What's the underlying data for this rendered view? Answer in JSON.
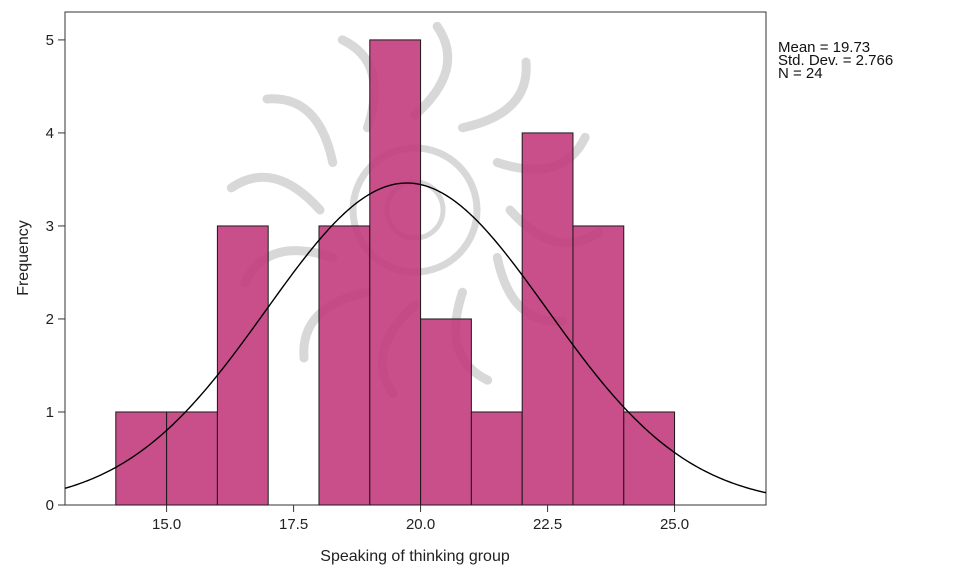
{
  "colors": {
    "bar_fill": "#c0377a",
    "bar_stroke": "#1a1a1a",
    "curve": "#000000",
    "watermark": "#b9b9b9"
  },
  "stats": {
    "mean": "Mean = 19.73",
    "std_dev": "Std. Dev. = 2.766",
    "n": "N = 24"
  },
  "chart_data": {
    "type": "bar",
    "xlabel": "Speaking of thinking group",
    "ylabel": "Frequency",
    "xlim": [
      13.0,
      26.8
    ],
    "ylim": [
      0,
      5.3
    ],
    "x_ticks": [
      "15.0",
      "17.5",
      "20.0",
      "22.5",
      "25.0"
    ],
    "y_ticks": [
      "0",
      "1",
      "2",
      "3",
      "4",
      "5"
    ],
    "bin_width": 1,
    "bins": [
      {
        "start": 14,
        "end": 15,
        "count": 1
      },
      {
        "start": 15,
        "end": 16,
        "count": 1
      },
      {
        "start": 16,
        "end": 17,
        "count": 3
      },
      {
        "start": 17,
        "end": 18,
        "count": 0
      },
      {
        "start": 18,
        "end": 19,
        "count": 3
      },
      {
        "start": 19,
        "end": 20,
        "count": 5
      },
      {
        "start": 20,
        "end": 21,
        "count": 2
      },
      {
        "start": 21,
        "end": 22,
        "count": 1
      },
      {
        "start": 22,
        "end": 23,
        "count": 4
      },
      {
        "start": 23,
        "end": 24,
        "count": 3
      },
      {
        "start": 24,
        "end": 25,
        "count": 1
      }
    ],
    "normal_curve": {
      "mean": 19.73,
      "std_dev": 2.766,
      "n": 24
    },
    "grid": false,
    "legend": "none"
  }
}
